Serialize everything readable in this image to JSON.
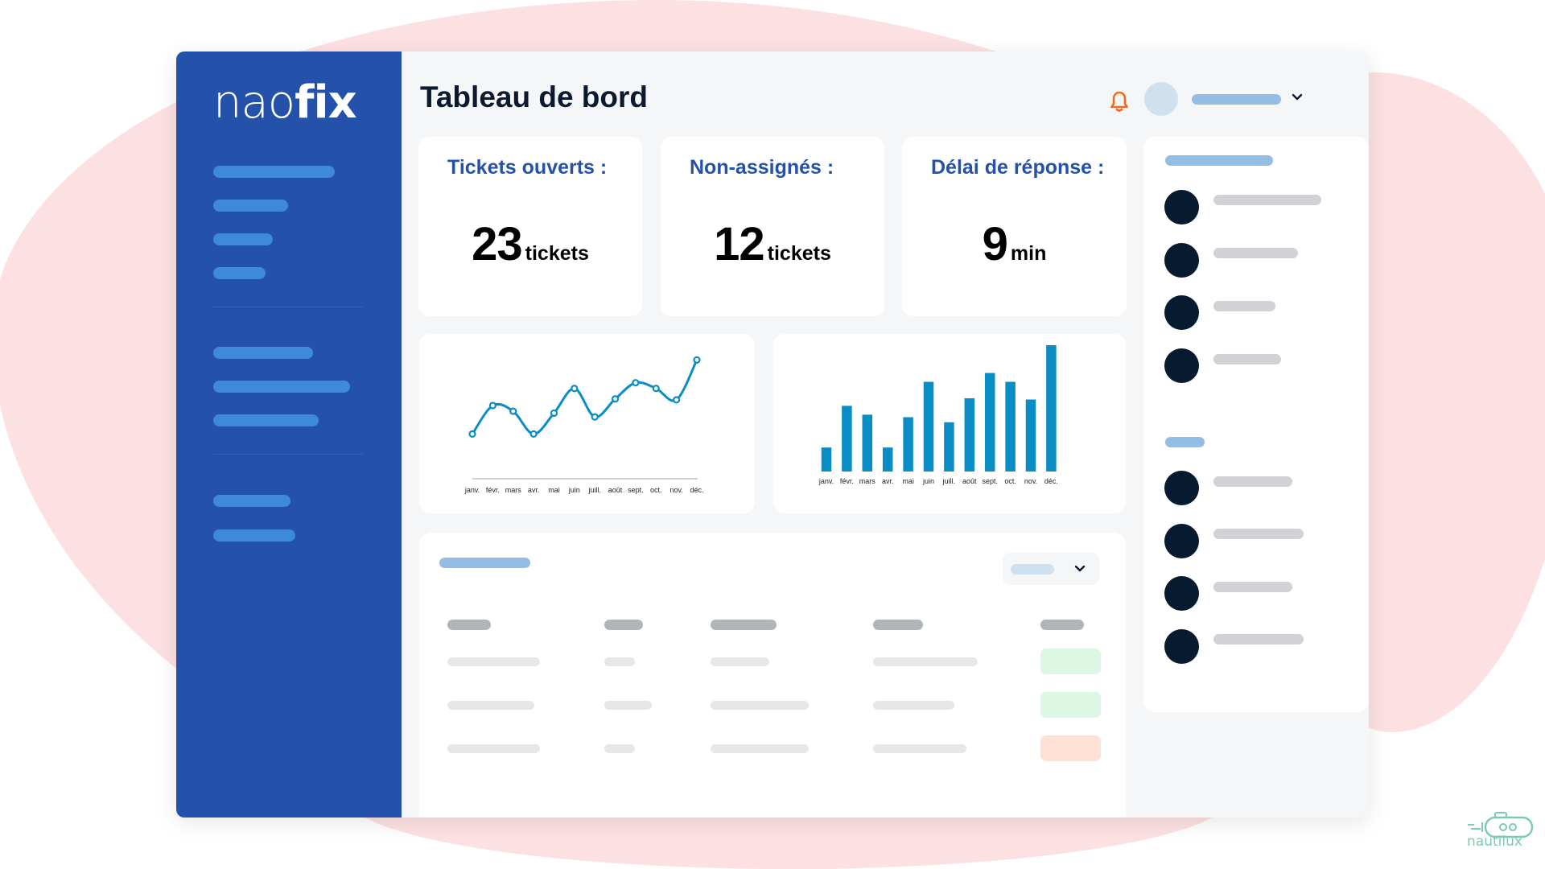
{
  "app": {
    "logo_light": "nao",
    "logo_bold": "fix",
    "brand_color": "#2452aa",
    "accent_color": "#0a8cc4"
  },
  "header": {
    "title": "Tableau de bord",
    "notification_icon": "bell-icon",
    "user_menu_icon": "chevron-down-icon"
  },
  "stats": [
    {
      "label": "Tickets ouverts :",
      "value": "23",
      "unit": "tickets"
    },
    {
      "label": "Non-assignés :",
      "value": "12",
      "unit": "tickets"
    },
    {
      "label": "Délai de réponse :",
      "value": "9",
      "unit": "min"
    }
  ],
  "chart_data": [
    {
      "type": "line",
      "title": "",
      "categories": [
        "janv.",
        "févr.",
        "mars",
        "avr.",
        "mai",
        "juin",
        "juill.",
        "août",
        "sept.",
        "oct.",
        "nov.",
        "déc."
      ],
      "values": [
        2,
        5,
        4.4,
        2,
        4.2,
        6.8,
        3.8,
        5.7,
        7.4,
        6.8,
        5.6,
        9.8
      ],
      "xlabel": "",
      "ylabel": "",
      "grid": false,
      "color": "#0a8cc4"
    },
    {
      "type": "bar",
      "title": "",
      "categories": [
        "janv.",
        "févr.",
        "mars",
        "avr.",
        "mai",
        "juin",
        "juill.",
        "août",
        "sept.",
        "oct.",
        "nov.",
        "déc."
      ],
      "values": [
        1.9,
        5.2,
        4.5,
        1.9,
        4.3,
        7.1,
        3.9,
        5.8,
        7.8,
        7.1,
        5.7,
        10
      ],
      "xlabel": "",
      "ylabel": "",
      "grid": false,
      "color": "#0a8cc4"
    }
  ],
  "table": {
    "status_colors": [
      "#dcf7e3",
      "#dcf7e3",
      "#ffe0d4"
    ]
  },
  "footer": {
    "partner_logo": "nautilux"
  }
}
